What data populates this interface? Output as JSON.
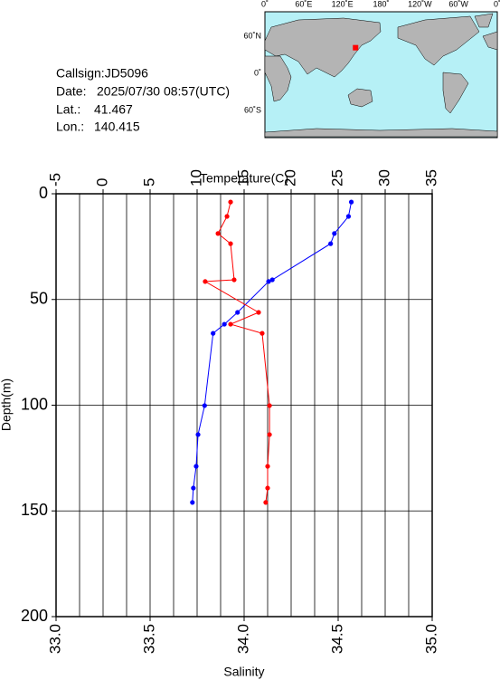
{
  "info": {
    "callsign": "Callsign:JD5096",
    "date_label": "Date:",
    "date": "2025/07/30 08:57(UTC)",
    "lat_label": "Lat.:",
    "lat": 41.467,
    "lon_label": "Lon.:",
    "lon": 140.415
  },
  "map": {
    "lon_labels": [
      "0˚",
      "60˚E",
      "120˚E",
      "180˚",
      "120˚W",
      "60˚W",
      "0˚"
    ],
    "lat_labels": [
      "60˚N",
      "0˚",
      "60˚S"
    ]
  },
  "chart_data": {
    "type": "line",
    "x2label": "Temperature(C)",
    "xlabel": "Salinity",
    "ylabel": "Depth(m)",
    "depth": [
      3.9,
      10.7,
      18.8,
      23.6,
      40.7,
      41.5,
      56.1,
      61.7,
      66.0,
      100.2,
      113.9,
      128.9,
      139.2,
      146.0
    ],
    "series": [
      {
        "name": "Temperature",
        "axis": "x2",
        "color": "#0000ff",
        "values": [
          26.4,
          26.1,
          24.6,
          24.2,
          18.0,
          17.6,
          14.3,
          12.9,
          11.7,
          10.8,
          10.1,
          9.9,
          9.6,
          9.5
        ]
      },
      {
        "name": "Salinity",
        "axis": "x",
        "color": "#ff0000",
        "values": [
          33.928,
          33.909,
          33.861,
          33.928,
          33.947,
          33.793,
          34.077,
          33.928,
          34.096,
          34.135,
          34.135,
          34.125,
          34.125,
          34.115
        ]
      }
    ],
    "x2lim": [
      -5,
      35
    ],
    "x2ticks": [
      -5,
      0,
      5,
      10,
      15,
      20,
      25,
      30,
      35
    ],
    "x2grid": [
      -5,
      -2.5,
      0,
      2.5,
      5,
      7.5,
      10,
      12.5,
      15,
      17.5,
      20,
      22.5,
      25,
      27.5,
      30,
      32.5,
      35
    ],
    "xlim": [
      33,
      35
    ],
    "xticks": [
      {
        "value": 33,
        "label": "33.0"
      },
      33.5,
      {
        "value": 34,
        "label": "34.0"
      },
      34.5,
      {
        "value": 35,
        "label": "35.0"
      }
    ],
    "ylim": [
      0,
      200
    ],
    "yticks": [
      0,
      50,
      100,
      150,
      200
    ],
    "ygrid": [
      50,
      100,
      150
    ]
  }
}
